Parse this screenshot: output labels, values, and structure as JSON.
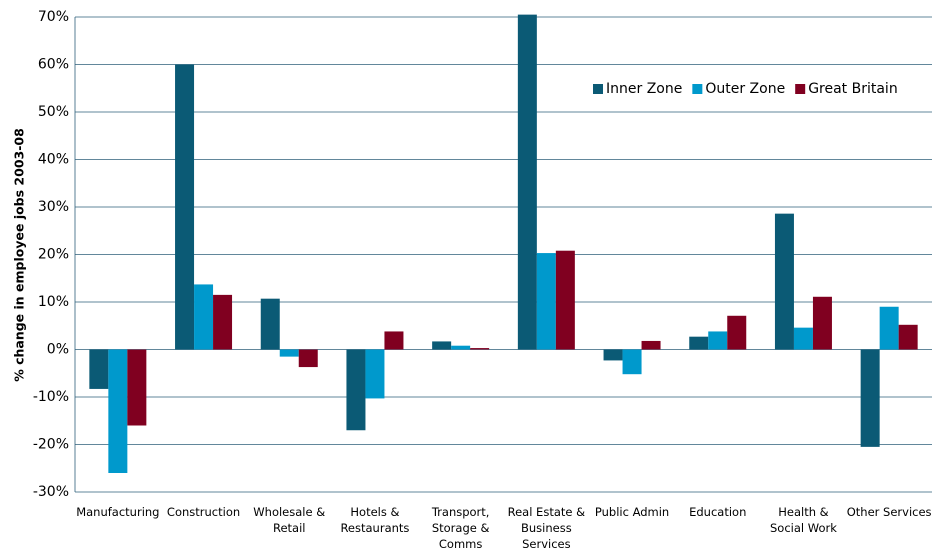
{
  "chart_data": {
    "type": "bar",
    "y_label": "% change in employee jobs 2003-08",
    "categories": [
      "Manufacturing",
      "Construction",
      "Wholesale & Retail",
      "Hotels & Restaurants",
      "Transport, Storage & Comms",
      "Real Estate & Business Services",
      "Public Admin",
      "Education",
      "Health & Social Work",
      "Other Services"
    ],
    "series": [
      {
        "name": "Inner Zone",
        "color": "#0b5a75",
        "values": [
          -8.3,
          60,
          10.7,
          -17,
          1.7,
          70.5,
          -2.3,
          2.7,
          28.6,
          -20.5
        ]
      },
      {
        "name": "Outer Zone",
        "color": "#0099cc",
        "values": [
          -26,
          13.7,
          -1.5,
          -10.3,
          0.8,
          20.3,
          -5.2,
          3.8,
          4.6,
          9
        ]
      },
      {
        "name": "Great Britain",
        "color": "#800020",
        "values": [
          -16,
          11.5,
          -3.7,
          3.8,
          0.3,
          20.8,
          1.8,
          7.1,
          11.1,
          5.2
        ]
      }
    ],
    "ylim": [
      -30,
      70
    ],
    "yticks": [
      {
        "value": -30,
        "label": "-30%"
      },
      {
        "value": -20,
        "label": "-20%"
      },
      {
        "value": -10,
        "label": "-10%"
      },
      {
        "value": 0,
        "label": "0%"
      },
      {
        "value": 10,
        "label": "10%"
      },
      {
        "value": 20,
        "label": "20%"
      },
      {
        "value": 30,
        "label": "30%"
      },
      {
        "value": 40,
        "label": "40%"
      },
      {
        "value": 50,
        "label": "50%"
      },
      {
        "value": 60,
        "label": "60%"
      },
      {
        "value": 70,
        "label": "70%"
      }
    ],
    "grid": true,
    "legend": "top-right"
  }
}
